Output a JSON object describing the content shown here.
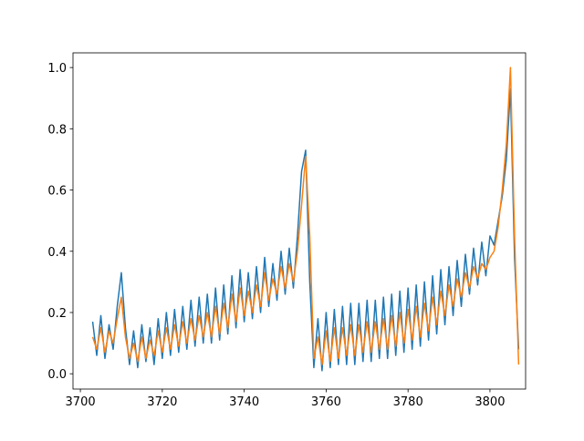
{
  "chart_data": {
    "type": "line",
    "x": [
      3703,
      3704,
      3705,
      3706,
      3707,
      3708,
      3709,
      3710,
      3711,
      3712,
      3713,
      3714,
      3715,
      3716,
      3717,
      3718,
      3719,
      3720,
      3721,
      3722,
      3723,
      3724,
      3725,
      3726,
      3727,
      3728,
      3729,
      3730,
      3731,
      3732,
      3733,
      3734,
      3735,
      3736,
      3737,
      3738,
      3739,
      3740,
      3741,
      3742,
      3743,
      3744,
      3745,
      3746,
      3747,
      3748,
      3749,
      3750,
      3751,
      3752,
      3753,
      3754,
      3755,
      3756,
      3757,
      3758,
      3759,
      3760,
      3761,
      3762,
      3763,
      3764,
      3765,
      3766,
      3767,
      3768,
      3769,
      3770,
      3771,
      3772,
      3773,
      3774,
      3775,
      3776,
      3777,
      3778,
      3779,
      3780,
      3781,
      3782,
      3783,
      3784,
      3785,
      3786,
      3787,
      3788,
      3789,
      3790,
      3791,
      3792,
      3793,
      3794,
      3795,
      3796,
      3797,
      3798,
      3799,
      3800,
      3801,
      3802,
      3803,
      3804,
      3805,
      3806,
      3807
    ],
    "series": [
      {
        "color": "#1f77b4",
        "values": [
          0.17,
          0.06,
          0.19,
          0.05,
          0.16,
          0.08,
          0.22,
          0.33,
          0.15,
          0.03,
          0.14,
          0.02,
          0.16,
          0.04,
          0.15,
          0.03,
          0.18,
          0.05,
          0.2,
          0.06,
          0.21,
          0.07,
          0.22,
          0.08,
          0.24,
          0.09,
          0.25,
          0.1,
          0.26,
          0.1,
          0.28,
          0.11,
          0.29,
          0.13,
          0.32,
          0.15,
          0.34,
          0.17,
          0.33,
          0.18,
          0.35,
          0.2,
          0.38,
          0.22,
          0.36,
          0.24,
          0.4,
          0.26,
          0.41,
          0.28,
          0.45,
          0.66,
          0.73,
          0.3,
          0.02,
          0.18,
          0.01,
          0.2,
          0.02,
          0.21,
          0.03,
          0.22,
          0.03,
          0.23,
          0.03,
          0.23,
          0.04,
          0.24,
          0.04,
          0.24,
          0.05,
          0.25,
          0.05,
          0.26,
          0.06,
          0.27,
          0.07,
          0.28,
          0.08,
          0.29,
          0.09,
          0.3,
          0.11,
          0.32,
          0.13,
          0.34,
          0.16,
          0.35,
          0.19,
          0.37,
          0.22,
          0.39,
          0.26,
          0.41,
          0.29,
          0.43,
          0.32,
          0.45,
          0.42,
          0.5,
          0.58,
          0.7,
          0.93,
          0.38,
          0.08
        ]
      },
      {
        "color": "#ff7f0e",
        "values": [
          0.12,
          0.08,
          0.15,
          0.07,
          0.14,
          0.1,
          0.18,
          0.25,
          0.12,
          0.05,
          0.1,
          0.04,
          0.12,
          0.05,
          0.11,
          0.06,
          0.14,
          0.07,
          0.15,
          0.08,
          0.16,
          0.09,
          0.17,
          0.1,
          0.18,
          0.11,
          0.19,
          0.12,
          0.2,
          0.12,
          0.22,
          0.13,
          0.23,
          0.15,
          0.26,
          0.17,
          0.28,
          0.19,
          0.27,
          0.2,
          0.29,
          0.22,
          0.33,
          0.24,
          0.31,
          0.26,
          0.35,
          0.28,
          0.36,
          0.3,
          0.4,
          0.55,
          0.71,
          0.45,
          0.05,
          0.12,
          0.03,
          0.14,
          0.04,
          0.15,
          0.05,
          0.15,
          0.06,
          0.16,
          0.06,
          0.16,
          0.07,
          0.17,
          0.07,
          0.17,
          0.08,
          0.18,
          0.08,
          0.19,
          0.09,
          0.2,
          0.1,
          0.21,
          0.11,
          0.22,
          0.12,
          0.23,
          0.14,
          0.25,
          0.16,
          0.27,
          0.19,
          0.29,
          0.22,
          0.31,
          0.25,
          0.33,
          0.28,
          0.35,
          0.31,
          0.36,
          0.34,
          0.38,
          0.4,
          0.48,
          0.6,
          0.75,
          1.0,
          0.45,
          0.03
        ]
      }
    ],
    "xlim": [
      3698.2,
      3808.7
    ],
    "xticks": [
      3700,
      3720,
      3740,
      3760,
      3780,
      3800
    ],
    "ylim": [
      -0.05,
      1.048
    ],
    "yticks": [
      {
        "value": 0,
        "label": "0.0"
      },
      0.2,
      0.4,
      0.6,
      0.8,
      {
        "value": 1,
        "label": "1.0"
      }
    ]
  }
}
